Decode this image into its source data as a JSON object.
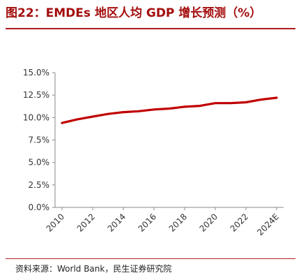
{
  "header": {
    "title": "图22：EMDEs 地区人均 GDP 增长预测（%）"
  },
  "footer": {
    "source": "资料来源：World Bank，民生证券研究院"
  },
  "chart_data": {
    "type": "line",
    "title": "图22：EMDEs 地区人均 GDP 增长预测（%）",
    "xlabel": "",
    "ylabel": "",
    "categories": [
      "2010",
      "2011",
      "2012",
      "2013",
      "2014",
      "2015",
      "2016",
      "2017",
      "2018",
      "2019",
      "2020",
      "2021",
      "2022",
      "2023",
      "2024E"
    ],
    "x_tick_labels": [
      "2010",
      "2012",
      "2014",
      "2016",
      "2018",
      "2020",
      "2022",
      "2024E"
    ],
    "y_tick_labels": [
      "0.0%",
      "2.5%",
      "5.0%",
      "7.5%",
      "10.0%",
      "12.5%",
      "15.0%"
    ],
    "ylim": [
      0,
      15
    ],
    "series": [
      {
        "values": [
          9.4,
          9.8,
          10.1,
          10.4,
          10.6,
          10.7,
          10.9,
          11.0,
          11.2,
          11.3,
          11.6,
          11.6,
          11.7,
          12.0,
          12.2
        ]
      }
    ],
    "grid": false,
    "legend": "none",
    "line_color": "#c00000"
  }
}
